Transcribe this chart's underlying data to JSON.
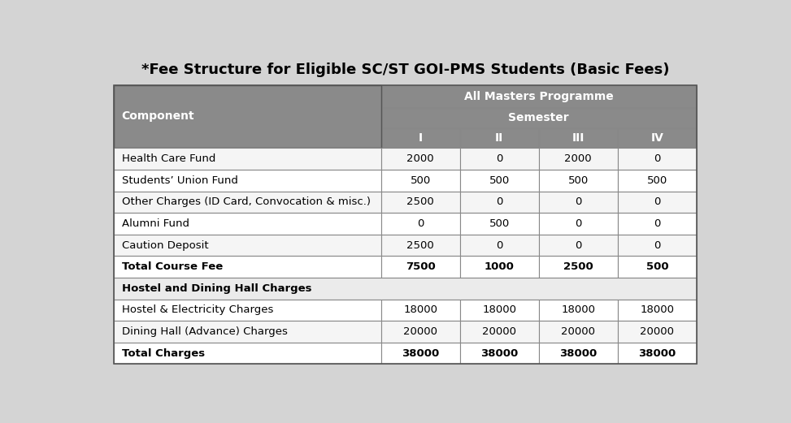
{
  "title": "*Fee Structure for Eligible SC/ST GOI-PMS Students (Basic Fees)",
  "rows": [
    [
      "Health Care Fund",
      "2000",
      "0",
      "2000",
      "0"
    ],
    [
      "Students’ Union Fund",
      "500",
      "500",
      "500",
      "500"
    ],
    [
      "Other Charges (ID Card, Convocation & misc.)",
      "2500",
      "0",
      "0",
      "0"
    ],
    [
      "Alumni Fund",
      "0",
      "500",
      "0",
      "0"
    ],
    [
      "Caution Deposit",
      "2500",
      "0",
      "0",
      "0"
    ],
    [
      "Total Course Fee",
      "7500",
      "1000",
      "2500",
      "500"
    ],
    [
      "Hostel and Dining Hall Charges",
      "",
      "",
      "",
      ""
    ],
    [
      "Hostel & Electricity Charges",
      "18000",
      "18000",
      "18000",
      "18000"
    ],
    [
      "Dining Hall (Advance) Charges",
      "20000",
      "20000",
      "20000",
      "20000"
    ],
    [
      "Total Charges",
      "38000",
      "38000",
      "38000",
      "38000"
    ]
  ],
  "bold_rows": [
    5,
    9
  ],
  "section_header_rows": [
    6
  ],
  "header_bg": "#8a8a8a",
  "header_text": "#ffffff",
  "data_row_bg": "#f5f5f5",
  "alt_row_bg": "#ffffff",
  "bold_row_bg": "#f5f5f5",
  "section_header_bg": "#ebebeb",
  "title_fontsize": 13,
  "cell_fontsize": 9.5,
  "fig_bg": "#d4d4d4",
  "table_border_color": "#555555",
  "inner_border_color": "#888888"
}
